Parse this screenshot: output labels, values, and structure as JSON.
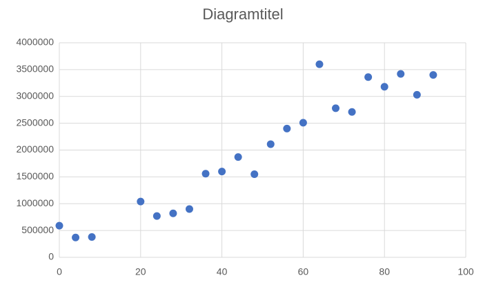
{
  "chart_data": {
    "type": "scatter",
    "title": "Diagramtitel",
    "x": [
      0,
      4,
      8,
      20,
      24,
      28,
      32,
      36,
      40,
      44,
      48,
      52,
      56,
      60,
      64,
      68,
      72,
      76,
      80,
      84,
      88,
      92
    ],
    "values": [
      590000,
      370000,
      380000,
      1040000,
      770000,
      820000,
      900000,
      1560000,
      1600000,
      1870000,
      1550000,
      2110000,
      2400000,
      2510000,
      3600000,
      2780000,
      2710000,
      3360000,
      3180000,
      3420000,
      3030000,
      3400000
    ],
    "color": "#4472c4",
    "xlim": [
      0,
      100
    ],
    "xticks": [
      0,
      20,
      40,
      60,
      80,
      100
    ],
    "ylim": [
      0,
      4000000
    ],
    "yticks": [
      0,
      500000,
      1000000,
      1500000,
      2000000,
      2500000,
      3000000,
      3500000,
      4000000
    ],
    "grid": true
  }
}
